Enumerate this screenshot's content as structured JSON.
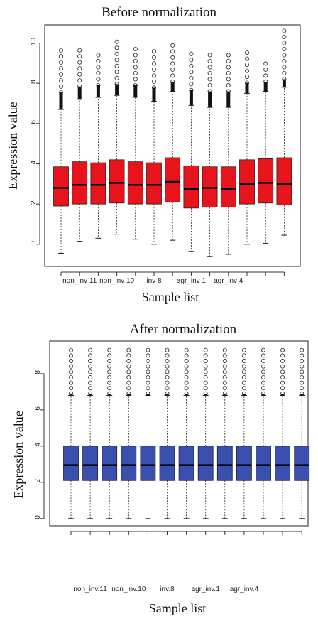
{
  "chart_data": [
    {
      "type": "box",
      "title": "Before normalization",
      "xlabel": "Sample list",
      "ylabel": "Expression value",
      "ylim": [
        -1.1,
        10.9
      ],
      "yticks": [
        0,
        2,
        4,
        6,
        8,
        10
      ],
      "box_color": "#e8141b",
      "xtick_labels": [
        "non_inv 11",
        "non_inv 10",
        "inv 8",
        "agr_inv 1",
        "agr_inv 4"
      ],
      "xtick_positions": [
        1,
        3,
        5,
        7,
        9
      ],
      "boxes": [
        {
          "low": -0.45,
          "q1": 1.9,
          "median": 2.8,
          "q3": 3.85,
          "high": 6.7,
          "outlier_max": 9.8
        },
        {
          "low": 0.15,
          "q1": 2.0,
          "median": 2.95,
          "q3": 4.1,
          "high": 7.2,
          "outlier_max": 9.9
        },
        {
          "low": 0.3,
          "q1": 2.0,
          "median": 2.95,
          "q3": 4.05,
          "high": 7.3,
          "outlier_max": 9.6
        },
        {
          "low": 0.5,
          "q1": 2.05,
          "median": 3.05,
          "q3": 4.2,
          "high": 7.4,
          "outlier_max": 10.1
        },
        {
          "low": 0.25,
          "q1": 2.0,
          "median": 2.95,
          "q3": 4.1,
          "high": 7.3,
          "outlier_max": 9.7
        },
        {
          "low": 0.0,
          "q1": 2.0,
          "median": 2.95,
          "q3": 4.05,
          "high": 7.1,
          "outlier_max": 9.8
        },
        {
          "low": 0.2,
          "q1": 2.1,
          "median": 3.1,
          "q3": 4.3,
          "high": 7.6,
          "outlier_max": 10.0
        },
        {
          "low": -0.35,
          "q1": 1.8,
          "median": 2.75,
          "q3": 3.9,
          "high": 6.9,
          "outlier_max": 9.7
        },
        {
          "low": -0.6,
          "q1": 1.85,
          "median": 2.8,
          "q3": 3.85,
          "high": 6.8,
          "outlier_max": 9.5
        },
        {
          "low": -0.5,
          "q1": 1.85,
          "median": 2.75,
          "q3": 3.85,
          "high": 6.8,
          "outlier_max": 9.6
        },
        {
          "low": 0.0,
          "q1": 2.0,
          "median": 3.0,
          "q3": 4.2,
          "high": 7.5,
          "outlier_max": 9.8
        },
        {
          "low": 0.05,
          "q1": 2.05,
          "median": 3.05,
          "q3": 4.25,
          "high": 7.6,
          "outlier_max": 9.2
        },
        {
          "low": 0.45,
          "q1": 1.95,
          "median": 3.0,
          "q3": 4.3,
          "high": 7.8,
          "outlier_max": 10.6
        }
      ]
    },
    {
      "type": "box",
      "title": "After normalization",
      "xlabel": "Sample list",
      "ylabel": "Expression value",
      "ylim": [
        -0.4,
        9.8
      ],
      "yticks": [
        0,
        2,
        4,
        6,
        8
      ],
      "box_color": "#3a4fb0",
      "xtick_labels": [
        "non_inv.11",
        "non_inv.10",
        "inv.8",
        "agr_inv.1",
        "agr_inv.4"
      ],
      "xtick_positions": [
        1,
        3,
        5,
        7,
        9
      ],
      "boxes": [
        {
          "low": 0.0,
          "q1": 2.1,
          "median": 2.95,
          "q3": 4.0,
          "high": 6.8,
          "outlier_max": 9.5
        },
        {
          "low": 0.0,
          "q1": 2.1,
          "median": 2.95,
          "q3": 4.0,
          "high": 6.8,
          "outlier_max": 9.5
        },
        {
          "low": 0.0,
          "q1": 2.1,
          "median": 2.95,
          "q3": 4.0,
          "high": 6.8,
          "outlier_max": 9.5
        },
        {
          "low": 0.0,
          "q1": 2.1,
          "median": 2.95,
          "q3": 4.0,
          "high": 6.8,
          "outlier_max": 9.5
        },
        {
          "low": 0.0,
          "q1": 2.1,
          "median": 2.95,
          "q3": 4.0,
          "high": 6.8,
          "outlier_max": 9.5
        },
        {
          "low": 0.0,
          "q1": 2.1,
          "median": 2.95,
          "q3": 4.0,
          "high": 6.8,
          "outlier_max": 9.5
        },
        {
          "low": 0.0,
          "q1": 2.1,
          "median": 2.95,
          "q3": 4.0,
          "high": 6.8,
          "outlier_max": 9.5
        },
        {
          "low": 0.0,
          "q1": 2.1,
          "median": 2.95,
          "q3": 4.0,
          "high": 6.8,
          "outlier_max": 9.5
        },
        {
          "low": 0.0,
          "q1": 2.1,
          "median": 2.95,
          "q3": 4.0,
          "high": 6.8,
          "outlier_max": 9.5
        },
        {
          "low": 0.0,
          "q1": 2.1,
          "median": 2.95,
          "q3": 4.0,
          "high": 6.8,
          "outlier_max": 9.5
        },
        {
          "low": 0.0,
          "q1": 2.1,
          "median": 2.95,
          "q3": 4.0,
          "high": 6.8,
          "outlier_max": 9.5
        },
        {
          "low": 0.0,
          "q1": 2.1,
          "median": 2.95,
          "q3": 4.0,
          "high": 6.8,
          "outlier_max": 9.5
        },
        {
          "low": 0.0,
          "q1": 2.1,
          "median": 2.95,
          "q3": 4.0,
          "high": 6.8,
          "outlier_max": 9.5
        }
      ]
    }
  ]
}
